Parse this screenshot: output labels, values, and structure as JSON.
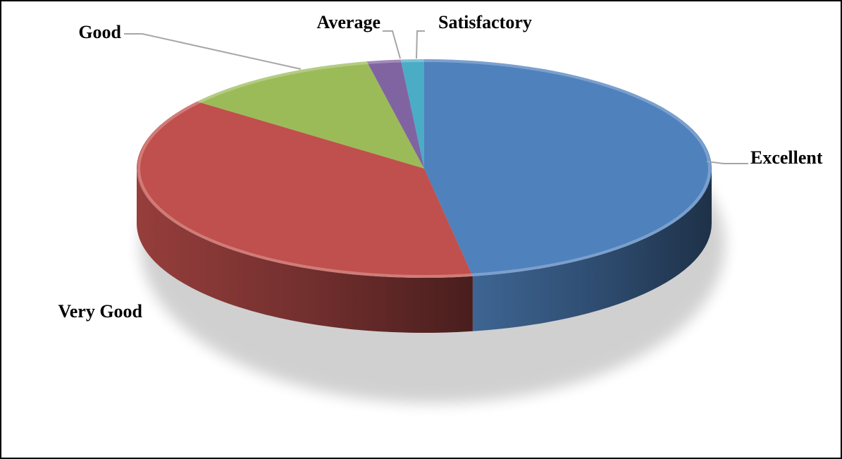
{
  "chart_data": {
    "type": "pie",
    "style": "3d",
    "title": "",
    "categories": [
      "Excellent",
      "Very Good",
      "Good",
      "Average",
      "Satisfactory"
    ],
    "values": [
      47.3,
      38.2,
      11.3,
      1.9,
      1.3
    ],
    "colors": [
      "#4f81bd",
      "#c0504d",
      "#9bbb59",
      "#8064a2",
      "#4bacc6"
    ],
    "legend": "none"
  }
}
